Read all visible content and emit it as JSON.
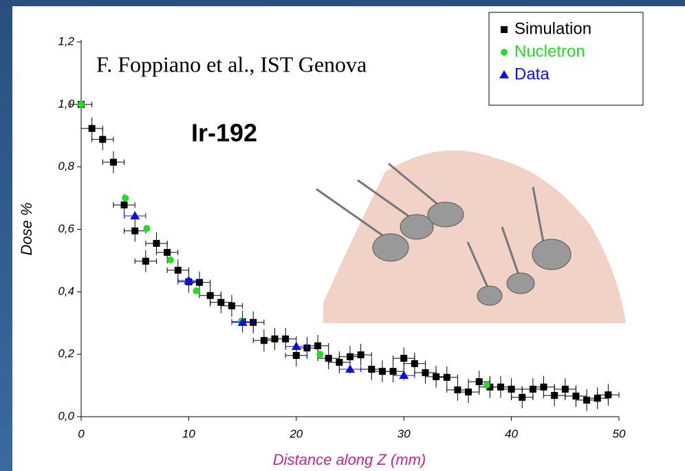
{
  "chart_data": {
    "type": "scatter",
    "annotations": [
      "F. Foppiano et al., IST Genova",
      "Ir-192"
    ],
    "xlabel": "Distance along Z (mm)",
    "ylabel": "Dose %",
    "xlim": [
      0,
      50
    ],
    "xticks": [
      0,
      10,
      20,
      30,
      40,
      50
    ],
    "ylim": [
      0,
      1.2
    ],
    "yticks": [
      {
        "value": 0,
        "label": "0,0"
      },
      {
        "value": 0.2,
        "label": "0,2"
      },
      {
        "value": 0.4,
        "label": "0,4"
      },
      {
        "value": 0.6,
        "label": "0,6"
      },
      {
        "value": 0.8,
        "label": "0,8"
      },
      {
        "value": 1.0,
        "label": "1,0"
      },
      {
        "value": 1.2,
        "label": "1,2"
      }
    ],
    "legend": "upper right",
    "series": [
      {
        "name": "Simulation",
        "color": "#000000",
        "marker": "square",
        "xerr": 1,
        "yerr": 0.035,
        "x": [
          0,
          1,
          2,
          3,
          4,
          5,
          6,
          7,
          8,
          9,
          10,
          11,
          12,
          13,
          14,
          15,
          16,
          17,
          18,
          19,
          20,
          21,
          22,
          23,
          24,
          25,
          26,
          27,
          28,
          29,
          30,
          31,
          32,
          33,
          34,
          35,
          36,
          37,
          38,
          39,
          40,
          41,
          42,
          43,
          44,
          45,
          46,
          47,
          48,
          49
        ],
        "values": [
          1.0,
          0.923,
          0.888,
          0.815,
          0.678,
          0.595,
          0.498,
          0.555,
          0.526,
          0.469,
          0.432,
          0.43,
          0.388,
          0.366,
          0.355,
          0.304,
          0.302,
          0.244,
          0.249,
          0.249,
          0.196,
          0.22,
          0.227,
          0.187,
          0.174,
          0.192,
          0.198,
          0.152,
          0.145,
          0.145,
          0.187,
          0.17,
          0.141,
          0.128,
          0.126,
          0.086,
          0.079,
          0.112,
          0.095,
          0.095,
          0.088,
          0.062,
          0.088,
          0.095,
          0.068,
          0.088,
          0.066,
          0.053,
          0.059,
          0.07
        ]
      },
      {
        "name": "Nucletron",
        "color": "#22dd22",
        "marker": "circle",
        "x": [
          0,
          4.1,
          6.1,
          8.3,
          10.7,
          14.9,
          22.2,
          37.7
        ],
        "values": [
          1.0,
          0.7,
          0.603,
          0.502,
          0.403,
          0.306,
          0.2,
          0.101
        ]
      },
      {
        "name": "Data",
        "color": "#1010dd",
        "marker": "triangle",
        "xerr": 1,
        "yerr": 0.015,
        "x": [
          5,
          10,
          15,
          20,
          25,
          30
        ],
        "values": [
          0.643,
          0.436,
          0.302,
          0.225,
          0.152,
          0.132
        ]
      }
    ]
  }
}
